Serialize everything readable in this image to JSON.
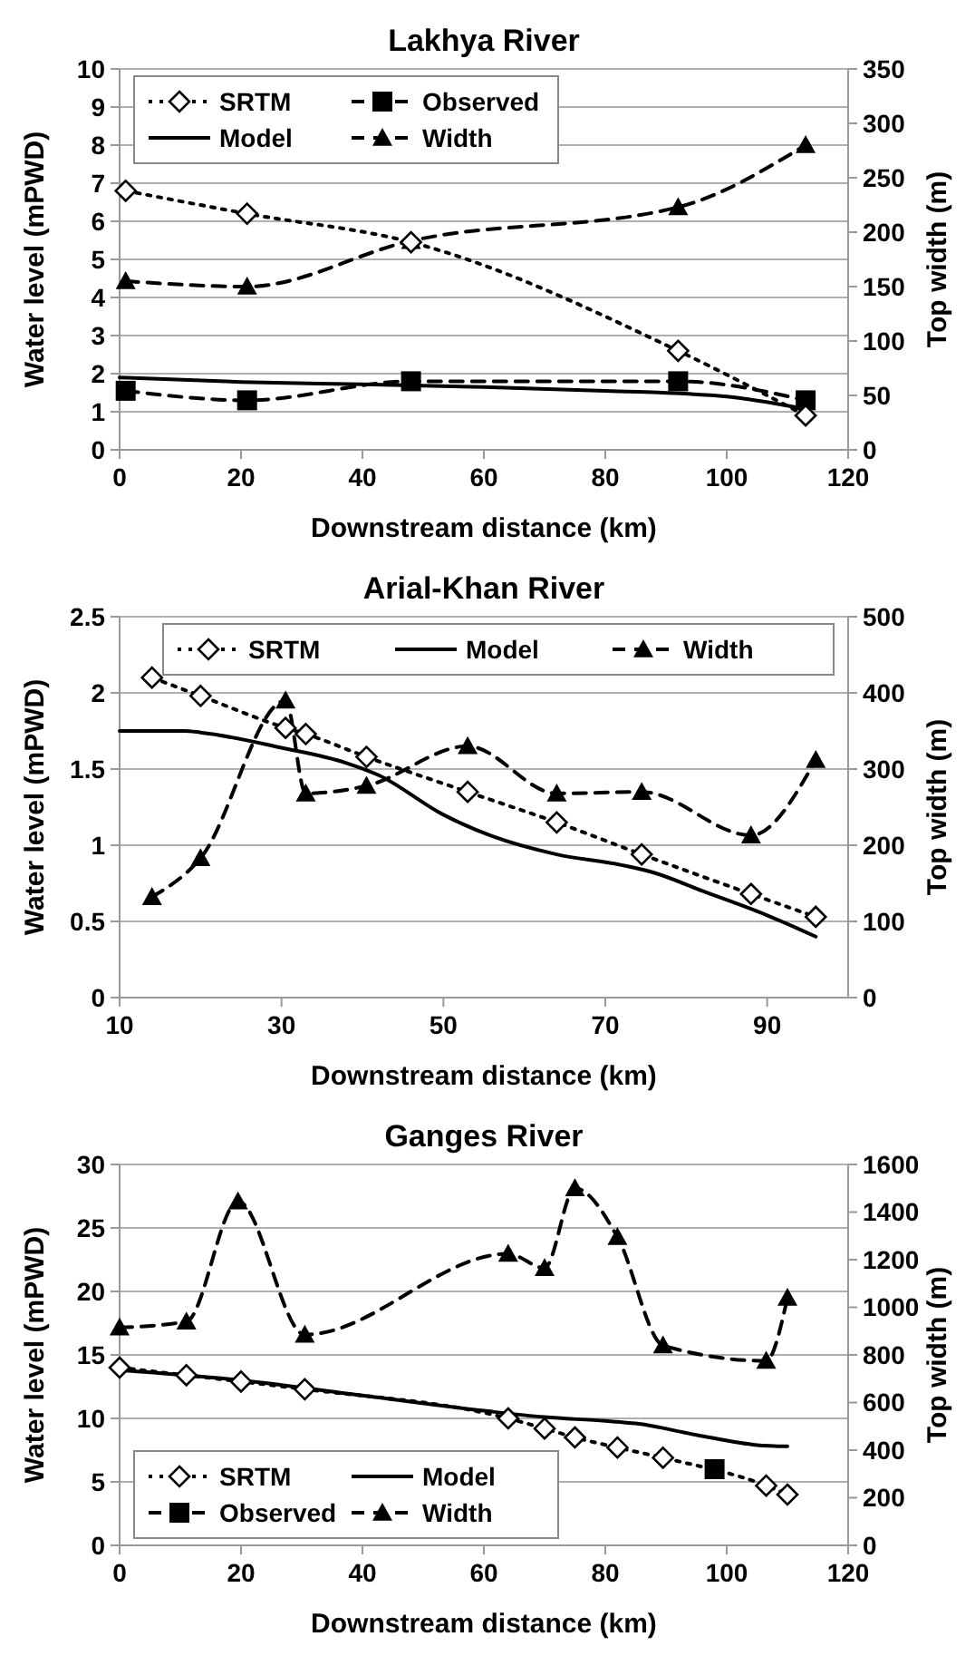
{
  "chart_data": [
    {
      "type": "line",
      "title": "Lakhya River",
      "xlabel": "Downstream distance (km)",
      "ylabel": "Water level (mPWD)",
      "y2label": "Top width (m)",
      "xlim": [
        0,
        120
      ],
      "xticks": [
        0,
        20,
        40,
        60,
        80,
        100,
        120
      ],
      "ylim": [
        0,
        10
      ],
      "yticks": [
        0,
        1,
        2,
        3,
        4,
        5,
        6,
        7,
        8,
        9,
        10
      ],
      "y2lim": [
        0,
        350
      ],
      "y2ticks": [
        0,
        50,
        100,
        150,
        200,
        250,
        300,
        350
      ],
      "grid": "y",
      "legend": "top left",
      "series": [
        {
          "name": "SRTM",
          "color": "#000000",
          "marker": "diamond",
          "line_style": "dotted",
          "x": [
            1,
            21,
            48,
            92,
            113
          ],
          "values": [
            6.8,
            6.2,
            5.45,
            2.6,
            0.9
          ]
        },
        {
          "name": "Observed",
          "color": "#000000",
          "marker": "square",
          "line_style": "dashed",
          "x": [
            1,
            21,
            48,
            92,
            113
          ],
          "values": [
            1.55,
            1.3,
            1.8,
            1.8,
            1.3
          ]
        },
        {
          "name": "Model",
          "color": "#000000",
          "marker": "none",
          "line_style": "solid",
          "x": [
            0,
            20,
            40,
            60,
            80,
            100,
            112
          ],
          "values": [
            1.9,
            1.78,
            1.72,
            1.65,
            1.55,
            1.4,
            1.1
          ]
        },
        {
          "name": "Width",
          "color": "#000000",
          "marker": "triangle",
          "line_style": "dashed",
          "axis": "y2",
          "x": [
            1,
            21,
            48,
            92,
            113
          ],
          "values": [
            155,
            150,
            192,
            223,
            280
          ]
        }
      ]
    },
    {
      "type": "line",
      "title": "Arial-Khan River",
      "xlabel": "Downstream distance (km)",
      "ylabel": "Water level (mPWD)",
      "y2label": "Top width (m)",
      "xlim": [
        10,
        100
      ],
      "xticks": [
        10,
        30,
        50,
        70,
        90
      ],
      "ylim": [
        0,
        2.5
      ],
      "yticks": [
        0,
        0.5,
        1,
        1.5,
        2,
        2.5
      ],
      "y2lim": [
        0,
        500
      ],
      "y2ticks": [
        0,
        100,
        200,
        300,
        400,
        500
      ],
      "grid": "y",
      "legend": "top right",
      "series": [
        {
          "name": "SRTM",
          "color": "#000000",
          "marker": "diamond",
          "line_style": "dotted",
          "x": [
            14,
            20,
            30.5,
            33,
            40.5,
            53,
            64,
            74.5,
            88,
            96
          ],
          "values": [
            2.1,
            1.98,
            1.77,
            1.73,
            1.58,
            1.35,
            1.15,
            0.94,
            0.68,
            0.53
          ]
        },
        {
          "name": "Model",
          "color": "#000000",
          "marker": "none",
          "line_style": "solid",
          "x": [
            10,
            18,
            20,
            30,
            38,
            42,
            50,
            56,
            64,
            72,
            76,
            82,
            90,
            96
          ],
          "values": [
            1.75,
            1.75,
            1.74,
            1.64,
            1.54,
            1.46,
            1.2,
            1.06,
            0.94,
            0.87,
            0.82,
            0.7,
            0.54,
            0.4
          ]
        },
        {
          "name": "Width",
          "color": "#000000",
          "marker": "triangle",
          "line_style": "dashed",
          "axis": "y2",
          "x": [
            14,
            20,
            30.5,
            33,
            40.5,
            53,
            64,
            74.5,
            88,
            96
          ],
          "values": [
            132,
            183,
            390,
            268,
            278,
            330,
            268,
            270,
            213,
            312
          ]
        }
      ]
    },
    {
      "type": "line",
      "title": "Ganges River",
      "xlabel": "Downstream distance (km)",
      "ylabel": "Water level (mPWD)",
      "y2label": "Top width (m)",
      "xlim": [
        0,
        120
      ],
      "xticks": [
        0,
        20,
        40,
        60,
        80,
        100,
        120
      ],
      "ylim": [
        0,
        30
      ],
      "yticks": [
        0,
        5,
        10,
        15,
        20,
        25,
        30
      ],
      "y2lim": [
        0,
        1600
      ],
      "y2ticks": [
        0,
        200,
        400,
        600,
        800,
        1000,
        1200,
        1400,
        1600
      ],
      "grid": "y",
      "legend": "bottom left",
      "series": [
        {
          "name": "SRTM",
          "color": "#000000",
          "marker": "diamond",
          "line_style": "dotted",
          "x": [
            0,
            11,
            20,
            30.5,
            64,
            70,
            75,
            82,
            89.5,
            106.5,
            110
          ],
          "values": [
            14,
            13.4,
            12.9,
            12.3,
            10,
            9.2,
            8.5,
            7.7,
            6.9,
            4.7,
            4
          ]
        },
        {
          "name": "Model",
          "color": "#000000",
          "marker": "none",
          "line_style": "solid",
          "x": [
            0,
            20,
            40,
            60,
            70,
            80,
            85,
            95,
            105,
            110
          ],
          "values": [
            13.8,
            13,
            11.8,
            10.6,
            10.1,
            9.8,
            9.6,
            8.7,
            7.9,
            7.8
          ]
        },
        {
          "name": "Observed",
          "color": "#000000",
          "marker": "square",
          "line_style": "dashed",
          "x": [
            98
          ],
          "values": [
            6
          ]
        },
        {
          "name": "Width",
          "color": "#000000",
          "marker": "triangle",
          "line_style": "dashed",
          "axis": "y2",
          "x": [
            0,
            11,
            19.5,
            30.5,
            64,
            70,
            75,
            82,
            89.5,
            106.5,
            110
          ],
          "values": [
            915,
            940,
            1445,
            885,
            1225,
            1165,
            1500,
            1295,
            840,
            775,
            1040
          ]
        }
      ]
    }
  ]
}
